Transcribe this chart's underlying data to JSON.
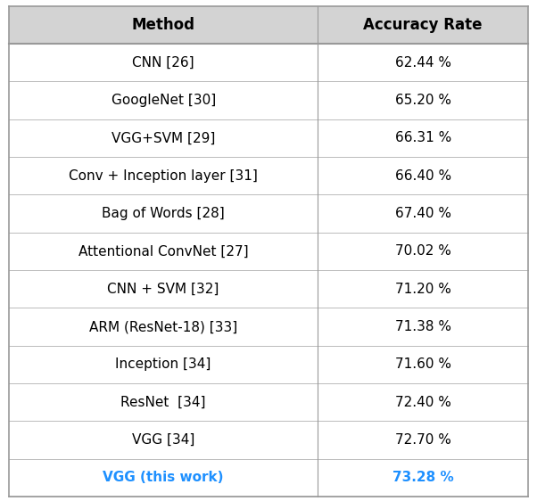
{
  "methods": [
    "CNN [26]",
    "GoogleNet [30]",
    "VGG+SVM [29]",
    "Conv + Inception layer [31]",
    "Bag of Words [28]",
    "Attentional ConvNet [27]",
    "CNN + SVM [32]",
    "ARM (ResNet-18) [33]",
    "Inception [34]",
    "ResNet  [34]",
    "VGG [34]",
    "VGG (this work)"
  ],
  "accuracies": [
    "62.44 %",
    "65.20 %",
    "66.31 %",
    "66.40 %",
    "67.40 %",
    "70.02 %",
    "71.20 %",
    "71.38 %",
    "71.60 %",
    "72.40 %",
    "72.70 %",
    "73.28 %"
  ],
  "highlight_row": 11,
  "highlight_color": "#1E90FF",
  "normal_color": "#000000",
  "header_color": "#000000",
  "col1_header": "Method",
  "col2_header": "Accuracy Rate",
  "bg_color": "#FFFFFF",
  "header_bg": "#D3D3D3",
  "font_size": 11.0,
  "header_font_size": 12.0
}
